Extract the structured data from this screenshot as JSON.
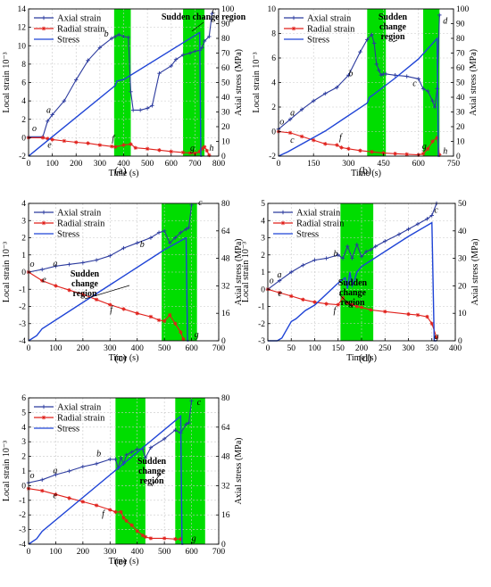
{
  "chart_data": [
    {
      "panel_label": "(a)",
      "type": "line",
      "xlabel": "Time (s)",
      "ylabel_left": "Local strain 10⁻³",
      "ylabel_right": "Axial stress (MPa)",
      "xlim": [
        0,
        800
      ],
      "xticks": [
        "0",
        "100",
        "200",
        "300",
        "400",
        "500",
        "600",
        "700",
        "800"
      ],
      "ylim_left": [
        -2,
        14
      ],
      "yticks_left": [
        "-2",
        "0",
        "2",
        "4",
        "6",
        "8",
        "10",
        "12",
        "14"
      ],
      "ylim_right": [
        0,
        100
      ],
      "yticks_right": [
        "0",
        "10",
        "20",
        "30",
        "40",
        "50",
        "60",
        "70",
        "80",
        "90",
        "100"
      ],
      "legend": [
        "Axial strain",
        "Radial strain",
        "Stress"
      ],
      "annotation": "Sudden change region",
      "regions": [
        [
          360,
          430
        ],
        [
          650,
          740
        ]
      ],
      "point_labels": [
        {
          "t": "o",
          "x": 15,
          "y": 0.7
        },
        {
          "t": "a",
          "x": 75,
          "y": 2.7
        },
        {
          "t": "b",
          "x": 318,
          "y": 11.0
        },
        {
          "t": "c",
          "x": 772,
          "y": 13.5
        },
        {
          "t": "e",
          "x": 80,
          "y": -1.1
        },
        {
          "t": "f",
          "x": 350,
          "y": -0.4
        },
        {
          "t": "g",
          "x": 680,
          "y": -1.4
        },
        {
          "t": "h",
          "x": 760,
          "y": -1.4
        }
      ],
      "series": [
        {
          "name": "Axial strain",
          "axis": "left",
          "x": [
            0,
            60,
            80,
            100,
            150,
            200,
            250,
            300,
            350,
            365,
            380,
            400,
            420,
            430,
            440,
            470,
            500,
            520,
            550,
            600,
            620,
            650,
            680,
            700,
            720,
            730,
            740,
            760,
            772
          ],
          "y": [
            0.1,
            0.1,
            1.8,
            2.5,
            4.0,
            6.3,
            8.4,
            9.8,
            10.8,
            11.0,
            11.2,
            11.0,
            10.9,
            5.0,
            3.0,
            3.0,
            3.2,
            3.5,
            7.0,
            7.8,
            8.5,
            9.0,
            9.2,
            9.4,
            9.5,
            9.8,
            10.5,
            11.0,
            13.5
          ]
        },
        {
          "name": "Radial strain",
          "axis": "left",
          "x": [
            0,
            60,
            80,
            100,
            150,
            200,
            250,
            300,
            350,
            365,
            400,
            430,
            450,
            500,
            550,
            600,
            650,
            680,
            700,
            720,
            730,
            740,
            750,
            760
          ],
          "y": [
            0.0,
            0.0,
            -0.1,
            -0.2,
            -0.35,
            -0.5,
            -0.6,
            -0.8,
            -0.95,
            -1.0,
            -0.8,
            -0.7,
            -1.1,
            -1.2,
            -1.35,
            -1.5,
            -1.6,
            -1.65,
            -1.7,
            -1.5,
            -1.2,
            -1.0,
            -1.4,
            -1.9
          ]
        },
        {
          "name": "Stress",
          "axis": "right",
          "x": [
            0,
            30,
            365,
            372,
            400,
            700,
            720,
            725,
            730
          ],
          "y": [
            0,
            4,
            48,
            51,
            52,
            82,
            84,
            0,
            0
          ]
        }
      ]
    },
    {
      "panel_label": "(b)",
      "type": "line",
      "xlabel": "Time (s)",
      "ylabel_left": "Local strain 10⁻³",
      "ylabel_right": "Axial stress (MPa)",
      "xlim": [
        0,
        750
      ],
      "xticks": [
        "0",
        "150",
        "300",
        "450",
        "600",
        "750"
      ],
      "ylim_left": [
        -2,
        10
      ],
      "yticks_left": [
        "-2",
        "0",
        "2",
        "4",
        "6",
        "8",
        "10"
      ],
      "ylim_right": [
        0,
        100
      ],
      "yticks_right": [
        "0",
        "10",
        "20",
        "30",
        "40",
        "50",
        "60",
        "70",
        "80",
        "90",
        "100"
      ],
      "legend": [
        "Axial strain",
        "Radial strain",
        "Stress"
      ],
      "annotation": "Sudden change region",
      "regions": [
        [
          380,
          460
        ],
        [
          620,
          690
        ]
      ],
      "point_labels": [
        {
          "t": "o",
          "x": 5,
          "y": 0.6
        },
        {
          "t": "a",
          "x": 50,
          "y": 1.3
        },
        {
          "t": "b",
          "x": 300,
          "y": 4.5
        },
        {
          "t": "c",
          "x": 575,
          "y": 3.7
        },
        {
          "t": "d",
          "x": 705,
          "y": 8.8
        },
        {
          "t": "c",
          "x": 50,
          "y": -0.9
        },
        {
          "t": "f",
          "x": 260,
          "y": -0.7
        },
        {
          "t": "g",
          "x": 615,
          "y": -1.4
        },
        {
          "t": "h",
          "x": 705,
          "y": -1.8
        }
      ],
      "series": [
        {
          "name": "Axial strain",
          "axis": "left",
          "x": [
            0,
            50,
            100,
            150,
            200,
            250,
            300,
            350,
            380,
            400,
            410,
            420,
            430,
            440,
            450,
            460,
            500,
            550,
            600,
            620,
            640,
            660,
            670,
            680,
            690
          ],
          "y": [
            0.2,
            1.0,
            1.8,
            2.5,
            3.1,
            3.6,
            4.6,
            6.5,
            7.5,
            7.9,
            7.2,
            5.5,
            5.0,
            4.6,
            4.7,
            4.7,
            4.6,
            4.5,
            4.3,
            3.5,
            3.3,
            2.5,
            2.0,
            3.5,
            9.5
          ]
        },
        {
          "name": "Radial strain",
          "axis": "left",
          "x": [
            0,
            50,
            100,
            150,
            200,
            250,
            270,
            300,
            350,
            400,
            450,
            500,
            550,
            600,
            620,
            640,
            660,
            680,
            690
          ],
          "y": [
            0.0,
            -0.1,
            -0.4,
            -0.7,
            -1.0,
            -1.1,
            -1.3,
            -1.4,
            -1.55,
            -1.65,
            -1.75,
            -1.8,
            -1.85,
            -1.9,
            -1.8,
            -1.4,
            -0.8,
            -0.5,
            -1.9
          ]
        },
        {
          "name": "Stress",
          "axis": "right",
          "x": [
            0,
            40,
            200,
            380,
            390,
            400,
            500,
            600,
            680,
            685,
            690
          ],
          "y": [
            0,
            3,
            17,
            36,
            40,
            41,
            53,
            66,
            80,
            0,
            0
          ]
        }
      ]
    },
    {
      "panel_label": "(c)",
      "type": "line",
      "xlabel": "Time (s)",
      "ylabel_left": "Local strain 10⁻³",
      "ylabel_right": "Axial stress (MPa)",
      "xlim": [
        0,
        700
      ],
      "xticks": [
        "0",
        "100",
        "200",
        "300",
        "400",
        "500",
        "600",
        "700"
      ],
      "ylim_left": [
        -4,
        4
      ],
      "yticks_left": [
        "-4",
        "-3",
        "-2",
        "-1",
        "0",
        "1",
        "2",
        "3",
        "4"
      ],
      "ylim_right": [
        0,
        80
      ],
      "yticks_right": [
        "0",
        "16",
        "32",
        "48",
        "64",
        "80"
      ],
      "legend": [
        "Axial strain",
        "Radial strain",
        "Stress"
      ],
      "annotation": "Sudden change region",
      "regions": [
        [
          490,
          620
        ]
      ],
      "point_labels": [
        {
          "t": "o",
          "x": 5,
          "y": 0.3
        },
        {
          "t": "a",
          "x": 90,
          "y": 0.35
        },
        {
          "t": "b",
          "x": 410,
          "y": 1.45
        },
        {
          "t": "c",
          "x": 625,
          "y": 3.9
        },
        {
          "t": "e",
          "x": 50,
          "y": -0.6
        },
        {
          "t": "f",
          "x": 300,
          "y": -2.35
        },
        {
          "t": "g",
          "x": 610,
          "y": -3.8
        }
      ],
      "series": [
        {
          "name": "Axial strain",
          "axis": "left",
          "x": [
            0,
            50,
            100,
            150,
            200,
            250,
            300,
            350,
            400,
            450,
            480,
            500,
            520,
            540,
            560,
            580,
            590,
            600
          ],
          "y": [
            0.0,
            0.15,
            0.35,
            0.45,
            0.55,
            0.7,
            0.95,
            1.4,
            1.7,
            2.0,
            2.3,
            2.4,
            1.7,
            2.0,
            2.3,
            2.5,
            2.6,
            3.9
          ]
        },
        {
          "name": "Radial strain",
          "axis": "left",
          "x": [
            0,
            50,
            100,
            150,
            200,
            250,
            300,
            350,
            400,
            450,
            480,
            500,
            520,
            540,
            560,
            570
          ],
          "y": [
            0.0,
            -0.5,
            -0.8,
            -1.05,
            -1.3,
            -1.6,
            -1.9,
            -2.15,
            -2.4,
            -2.6,
            -2.8,
            -2.85,
            -2.5,
            -3.0,
            -3.5,
            -3.9
          ]
        },
        {
          "name": "Stress",
          "axis": "right",
          "x": [
            0,
            30,
            50,
            500,
            580,
            585,
            590
          ],
          "y": [
            0,
            3,
            7,
            53,
            60,
            0,
            0
          ]
        }
      ]
    },
    {
      "panel_label": "(d)",
      "type": "line",
      "xlabel": "Time (s)",
      "ylabel_left": "Local strain 10⁻³",
      "ylabel_right": "Axial stress (MPa)",
      "xlim": [
        0,
        400
      ],
      "xticks": [
        "0",
        "50",
        "100",
        "150",
        "200",
        "250",
        "300",
        "350",
        "400"
      ],
      "ylim_left": [
        -3,
        5
      ],
      "yticks_left": [
        "-3",
        "-2",
        "-1",
        "0",
        "1",
        "2",
        "3",
        "4",
        "5"
      ],
      "ylim_right": [
        0,
        50
      ],
      "yticks_right": [
        "0",
        "10",
        "20",
        "30",
        "40",
        "50"
      ],
      "legend": [
        "Axial strain",
        "Radial strain",
        "Stress"
      ],
      "annotation": "Sudden change region",
      "regions": [
        [
          155,
          225
        ]
      ],
      "point_labels": [
        {
          "t": "o",
          "x": 3,
          "y": 0.35
        },
        {
          "t": "a",
          "x": 20,
          "y": 0.7
        },
        {
          "t": "b",
          "x": 140,
          "y": 1.9
        },
        {
          "t": "c",
          "x": 355,
          "y": 4.45
        },
        {
          "t": "e",
          "x": 22,
          "y": -0.4
        },
        {
          "t": "f",
          "x": 140,
          "y": -1.4
        },
        {
          "t": "g",
          "x": 355,
          "y": -2.9
        }
      ],
      "series": [
        {
          "name": "Axial strain",
          "axis": "left",
          "x": [
            0,
            25,
            50,
            75,
            100,
            125,
            150,
            160,
            170,
            180,
            190,
            200,
            210,
            220,
            230,
            250,
            280,
            300,
            320,
            340,
            350,
            360
          ],
          "y": [
            0.0,
            0.5,
            1.0,
            1.4,
            1.7,
            1.8,
            2.0,
            1.8,
            2.5,
            1.8,
            2.6,
            1.9,
            2.2,
            2.3,
            2.5,
            2.8,
            3.2,
            3.5,
            3.8,
            4.1,
            4.3,
            5.0
          ]
        },
        {
          "name": "Radial strain",
          "axis": "left",
          "x": [
            0,
            25,
            50,
            75,
            100,
            125,
            150,
            160,
            170,
            180,
            190,
            200,
            220,
            250,
            300,
            320,
            340,
            350,
            360
          ],
          "y": [
            0.0,
            -0.2,
            -0.4,
            -0.6,
            -0.75,
            -0.85,
            -0.9,
            -0.5,
            -0.8,
            -0.9,
            -1.0,
            -1.05,
            -1.2,
            -1.3,
            -1.45,
            -1.5,
            -1.6,
            -2.0,
            -2.8
          ]
        },
        {
          "name": "Stress",
          "axis": "right",
          "x": [
            0,
            20,
            30,
            40,
            50,
            60,
            80,
            100,
            150,
            165,
            170,
            175,
            180,
            185,
            190,
            200,
            300,
            350,
            355,
            360
          ],
          "y": [
            0,
            0,
            1,
            4,
            7,
            8,
            11,
            13,
            21,
            23,
            19,
            25,
            20,
            22,
            25,
            27,
            38,
            43,
            0,
            0
          ]
        }
      ]
    },
    {
      "panel_label": "(e)",
      "type": "line",
      "xlabel": "Time (s)",
      "ylabel_left": "Local strain 10⁻³",
      "ylabel_right": "Axial stress (MPa)",
      "xlim": [
        0,
        700
      ],
      "xticks": [
        "0",
        "100",
        "200",
        "300",
        "400",
        "500",
        "600",
        "700"
      ],
      "ylim_left": [
        -4,
        6
      ],
      "yticks_left": [
        "-4",
        "-3",
        "-2",
        "-1",
        "0",
        "1",
        "2",
        "3",
        "4",
        "5",
        "6"
      ],
      "ylim_right": [
        0,
        80
      ],
      "yticks_right": [
        "0",
        "16",
        "32",
        "48",
        "64",
        "80"
      ],
      "legend": [
        "Axial strain",
        "Radial strain",
        "Stress"
      ],
      "annotation": "Sudden change region",
      "regions": [
        [
          320,
          430
        ],
        [
          540,
          650
        ]
      ],
      "point_labels": [
        {
          "t": "o",
          "x": 5,
          "y": 0.5
        },
        {
          "t": "a",
          "x": 90,
          "y": 0.85
        },
        {
          "t": "b",
          "x": 250,
          "y": 2.0
        },
        {
          "t": "c",
          "x": 620,
          "y": 5.5
        },
        {
          "t": "e",
          "x": 90,
          "y": -0.85
        },
        {
          "t": "f",
          "x": 270,
          "y": -2.1
        },
        {
          "t": "g",
          "x": 600,
          "y": -3.8
        }
      ],
      "series": [
        {
          "name": "Axial strain",
          "axis": "left",
          "x": [
            0,
            50,
            100,
            150,
            200,
            250,
            300,
            320,
            330,
            340,
            350,
            360,
            380,
            400,
            420,
            430,
            450,
            500,
            540,
            560,
            580,
            590,
            600
          ],
          "y": [
            0.2,
            0.4,
            0.75,
            1.0,
            1.3,
            1.5,
            1.8,
            1.8,
            1.2,
            1.9,
            1.5,
            2.1,
            2.3,
            2.5,
            2.5,
            1.9,
            2.6,
            3.2,
            3.8,
            3.6,
            4.2,
            4.3,
            5.8
          ]
        },
        {
          "name": "Radial strain",
          "axis": "left",
          "x": [
            0,
            50,
            100,
            150,
            200,
            250,
            300,
            320,
            340,
            350,
            360,
            380,
            400,
            420,
            430,
            450,
            500,
            540,
            560
          ],
          "y": [
            -0.2,
            -0.35,
            -0.6,
            -0.85,
            -1.1,
            -1.35,
            -1.65,
            -1.8,
            -1.8,
            -2.2,
            -2.4,
            -2.7,
            -3.1,
            -3.4,
            -3.5,
            -3.6,
            -3.6,
            -3.65,
            -3.65
          ]
        },
        {
          "name": "Stress",
          "axis": "right",
          "x": [
            0,
            30,
            50,
            560,
            565,
            570
          ],
          "y": [
            0,
            3,
            7,
            70,
            0,
            0
          ]
        }
      ]
    }
  ]
}
